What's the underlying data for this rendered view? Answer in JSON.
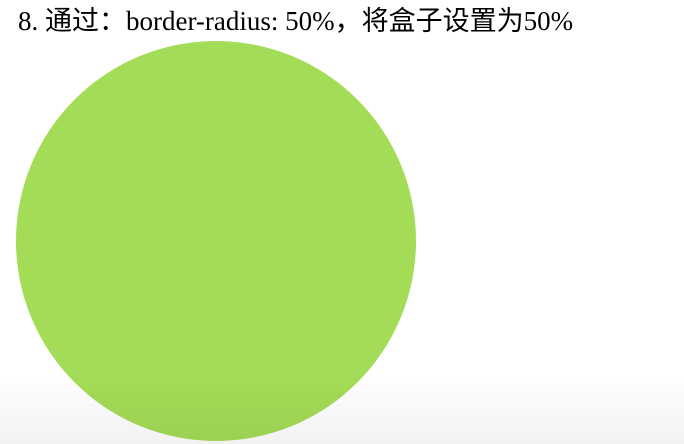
{
  "heading": {
    "text": "8. 通过：border-radius: 50%，将盒子设置为50%"
  },
  "demo_circle": {
    "color": "#a3dc56"
  }
}
